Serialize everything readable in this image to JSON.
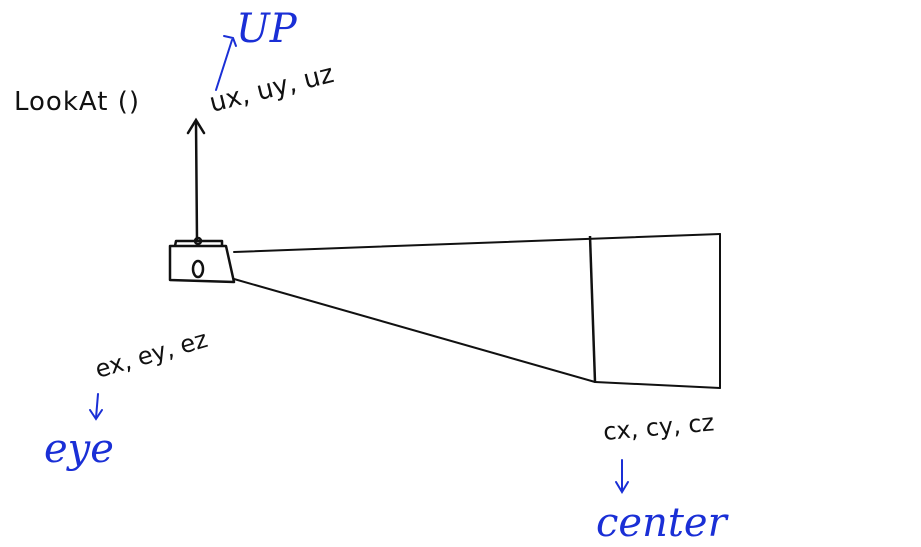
{
  "labels": {
    "function_name": "LookAt ()",
    "up_vector": "ux, uy, uz",
    "eye_coords": "ex, ey, ez",
    "center_coords": "cx, cy, cz"
  },
  "annotations": {
    "up": "UP",
    "eye": "eye",
    "center": "center"
  },
  "colors": {
    "ink": "#111111",
    "annotation": "#1a2fd6"
  }
}
